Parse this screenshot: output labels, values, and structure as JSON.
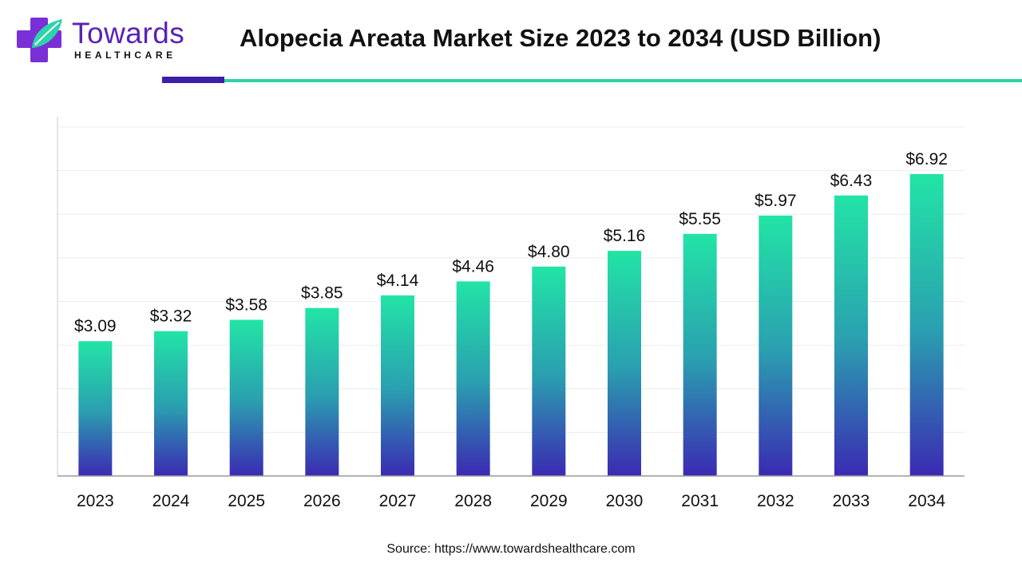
{
  "brand": {
    "name": "Towards",
    "tagline": "HEALTHCARE",
    "colors": {
      "purple": "#5a22b5",
      "teal": "#2dd4a8",
      "dark_purple": "#3c1eab"
    }
  },
  "source_text": "Source: https://www.towardshealthcare.com",
  "chart_data": {
    "type": "bar",
    "title": "Alopecia Areata Market Size 2023 to 2034 (USD Billion)",
    "xlabel": "",
    "ylabel": "",
    "categories": [
      "2023",
      "2024",
      "2025",
      "2026",
      "2027",
      "2028",
      "2029",
      "2030",
      "2031",
      "2032",
      "2033",
      "2034"
    ],
    "values": [
      3.09,
      3.32,
      3.58,
      3.85,
      4.14,
      4.46,
      4.8,
      5.16,
      5.55,
      5.97,
      6.43,
      6.92
    ],
    "value_labels": [
      "$3.09",
      "$3.32",
      "$3.58",
      "$3.85",
      "$4.14",
      "$4.46",
      "$4.80",
      "$5.16",
      "$5.55",
      "$5.97",
      "$6.43",
      "$6.92"
    ],
    "ylim": [
      0,
      8
    ],
    "grid": true,
    "bar_gradient": {
      "top": "#22e4a6",
      "middle": "#2a9fb0",
      "bottom": "#3b2ab3"
    }
  }
}
